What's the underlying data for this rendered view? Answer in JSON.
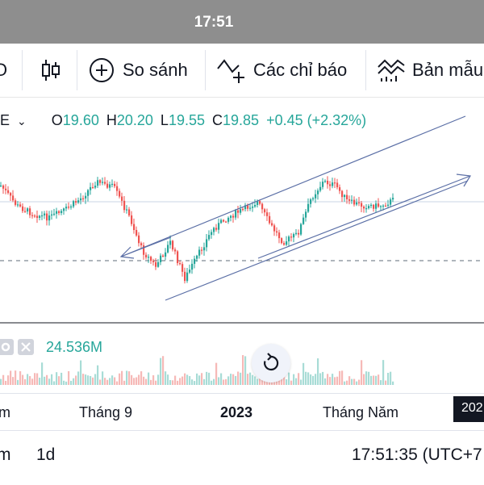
{
  "status_bar": {
    "time": "17:51"
  },
  "toolbar": {
    "left_partial": "O",
    "compare_label": "So sánh",
    "indicators_label": "Các chỉ báo",
    "templates_label": "Bản mẫu"
  },
  "legend": {
    "symbol_partial": "E",
    "open_label": "O",
    "open": "19.60",
    "high_label": "H",
    "high": "20.20",
    "low_label": "L",
    "low": "19.55",
    "close_label": "C",
    "close": "19.85",
    "change": "+0.45 (+2.32%)"
  },
  "volume": {
    "value": "24.536M"
  },
  "time_axis": {
    "labels": [
      "m",
      "Tháng 9",
      "2023",
      "Tháng Năm"
    ],
    "year_badge": "202"
  },
  "bottom_bar": {
    "range_partial": "m",
    "interval": "1d",
    "clock": "17:51:35 (UTC+7"
  },
  "colors": {
    "up": "#26a69a",
    "down": "#ef5350",
    "trendline": "#5b6fa6"
  },
  "icons": [
    "candles-icon",
    "plus-circle-icon",
    "indicators-icon",
    "templates-icon",
    "chevron-down-icon",
    "settings-icon",
    "close-icon",
    "reset-icon"
  ]
}
